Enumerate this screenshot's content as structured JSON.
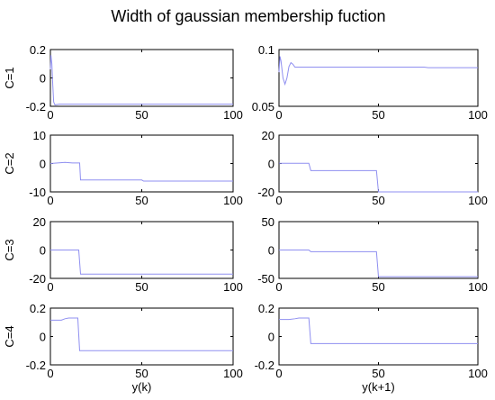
{
  "title": "Width of gaussian membership fuction",
  "colors": {
    "line": "#8f8ff0",
    "axes": "#000000",
    "background": "#ffffff"
  },
  "chart_data": [
    {
      "type": "line",
      "ylabel": "C=1",
      "xlabel": "",
      "xlim": [
        0,
        100
      ],
      "ylim": [
        -0.2,
        0.2
      ],
      "xticks": [
        "0",
        "50",
        "100"
      ],
      "yticks": [
        "-0.2",
        "0",
        "0.2"
      ],
      "series": [
        {
          "x": [
            0,
            0.3,
            0.8,
            1.3,
            1.8,
            2.5,
            5,
            15,
            100
          ],
          "y": [
            0.06,
            0.16,
            0.1,
            -0.05,
            -0.17,
            -0.19,
            -0.185,
            -0.185,
            -0.185
          ]
        }
      ]
    },
    {
      "type": "line",
      "ylabel": "",
      "xlabel": "",
      "xlim": [
        0,
        100
      ],
      "ylim": [
        0.05,
        0.1
      ],
      "xticks": [
        "0",
        "50",
        "100"
      ],
      "yticks": [
        "0.05",
        "0.1"
      ],
      "series": [
        {
          "x": [
            0,
            0.5,
            1,
            2,
            3,
            4,
            5,
            6,
            7,
            8,
            15,
            50,
            73,
            75,
            100
          ],
          "y": [
            0.08,
            0.094,
            0.09,
            0.075,
            0.0695,
            0.075,
            0.085,
            0.0885,
            0.087,
            0.0845,
            0.0845,
            0.0845,
            0.0845,
            0.084,
            0.084
          ]
        }
      ]
    },
    {
      "type": "line",
      "ylabel": "C=2",
      "xlabel": "",
      "xlim": [
        0,
        100
      ],
      "ylim": [
        -10,
        10
      ],
      "xticks": [
        "0",
        "50",
        "100"
      ],
      "yticks": [
        "-10",
        "0",
        "10"
      ],
      "series": [
        {
          "x": [
            0,
            4,
            8,
            12,
            16,
            16.5,
            50,
            51,
            100
          ],
          "y": [
            0,
            0.2,
            0.4,
            0.2,
            0.2,
            -5.8,
            -5.8,
            -6.2,
            -6.2
          ]
        }
      ]
    },
    {
      "type": "line",
      "ylabel": "",
      "xlabel": "",
      "xlim": [
        0,
        100
      ],
      "ylim": [
        -20,
        20
      ],
      "xticks": [
        "0",
        "50",
        "100"
      ],
      "yticks": [
        "-20",
        "0",
        "20"
      ],
      "series": [
        {
          "x": [
            0,
            15,
            16,
            49,
            50,
            100
          ],
          "y": [
            0.2,
            0.2,
            -5,
            -5,
            -20,
            -20
          ]
        }
      ]
    },
    {
      "type": "line",
      "ylabel": "C=3",
      "xlabel": "",
      "xlim": [
        0,
        100
      ],
      "ylim": [
        -20,
        20
      ],
      "xticks": [
        "0",
        "50",
        "100"
      ],
      "yticks": [
        "-20",
        "0",
        "20"
      ],
      "series": [
        {
          "x": [
            0,
            15.5,
            16.5,
            100
          ],
          "y": [
            0,
            0,
            -17,
            -17
          ]
        }
      ]
    },
    {
      "type": "line",
      "ylabel": "",
      "xlabel": "",
      "xlim": [
        0,
        100
      ],
      "ylim": [
        -50,
        50
      ],
      "xticks": [
        "0",
        "50",
        "100"
      ],
      "yticks": [
        "-50",
        "0",
        "50"
      ],
      "series": [
        {
          "x": [
            0,
            15,
            16,
            49,
            50,
            100
          ],
          "y": [
            0,
            0,
            -3,
            -3,
            -47,
            -47
          ]
        }
      ]
    },
    {
      "type": "line",
      "ylabel": "C=4",
      "xlabel": "y(k)",
      "xlim": [
        0,
        100
      ],
      "ylim": [
        -0.2,
        0.2
      ],
      "xticks": [
        "0",
        "50",
        "100"
      ],
      "yticks": [
        "-0.2",
        "0",
        "0.2"
      ],
      "series": [
        {
          "x": [
            0,
            6,
            8,
            10,
            15,
            16,
            100
          ],
          "y": [
            0.115,
            0.115,
            0.125,
            0.13,
            0.13,
            -0.1,
            -0.1
          ]
        }
      ]
    },
    {
      "type": "line",
      "ylabel": "",
      "xlabel": "y(k+1)",
      "xlim": [
        0,
        100
      ],
      "ylim": [
        -0.2,
        0.2
      ],
      "xticks": [
        "0",
        "50",
        "100"
      ],
      "yticks": [
        "-0.2",
        "0",
        "0.2"
      ],
      "series": [
        {
          "x": [
            0,
            5,
            8,
            10,
            15,
            16,
            100
          ],
          "y": [
            0.12,
            0.12,
            0.125,
            0.13,
            0.13,
            -0.05,
            -0.05
          ]
        }
      ]
    }
  ]
}
